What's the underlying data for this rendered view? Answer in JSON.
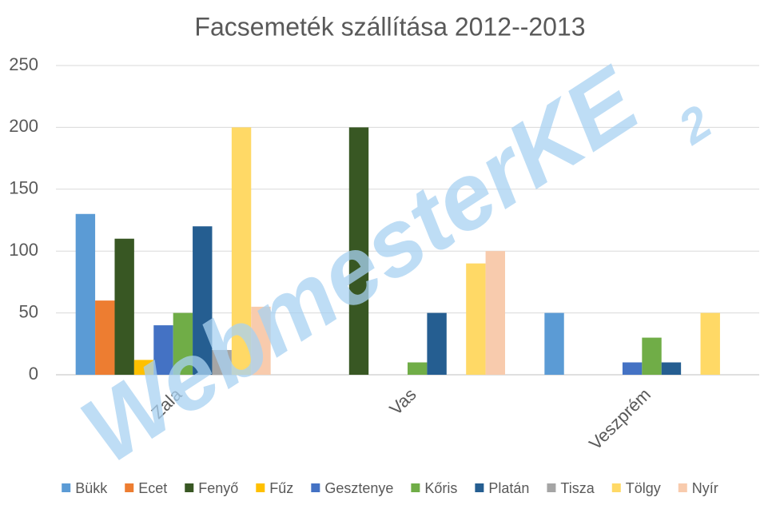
{
  "chart_data": {
    "type": "bar",
    "title": "Facsemeték szállítása 2012--2013",
    "watermark": "WebmesterKE",
    "watermark_sub": "2",
    "categories": [
      "Zala",
      "Vas",
      "Veszprém"
    ],
    "series": [
      {
        "name": "Bükk",
        "color": "#5b9bd5",
        "values": [
          130,
          null,
          50
        ]
      },
      {
        "name": "Ecet",
        "color": "#ed7d31",
        "values": [
          60,
          null,
          null
        ]
      },
      {
        "name": "Fenyő",
        "color": "#385723",
        "values": [
          110,
          200,
          null
        ]
      },
      {
        "name": "Fűz",
        "color": "#ffc000",
        "values": [
          12,
          null,
          null
        ]
      },
      {
        "name": "Gesztenye",
        "color": "#4472c4",
        "values": [
          40,
          null,
          10
        ]
      },
      {
        "name": "Kőris",
        "color": "#70ad47",
        "values": [
          50,
          10,
          30
        ]
      },
      {
        "name": "Platán",
        "color": "#255e91",
        "values": [
          120,
          50,
          10
        ]
      },
      {
        "name": "Tisza",
        "color": "#a5a5a5",
        "values": [
          20,
          null,
          null
        ]
      },
      {
        "name": "Tölgy",
        "color": "#ffd966",
        "values": [
          200,
          90,
          50
        ]
      },
      {
        "name": "Nyír",
        "color": "#f8cbad",
        "values": [
          55,
          100,
          null
        ]
      }
    ],
    "ylim": [
      0,
      250
    ],
    "yticks": [
      0,
      50,
      100,
      150,
      200,
      250
    ],
    "grid": true,
    "legend": "bottom"
  }
}
